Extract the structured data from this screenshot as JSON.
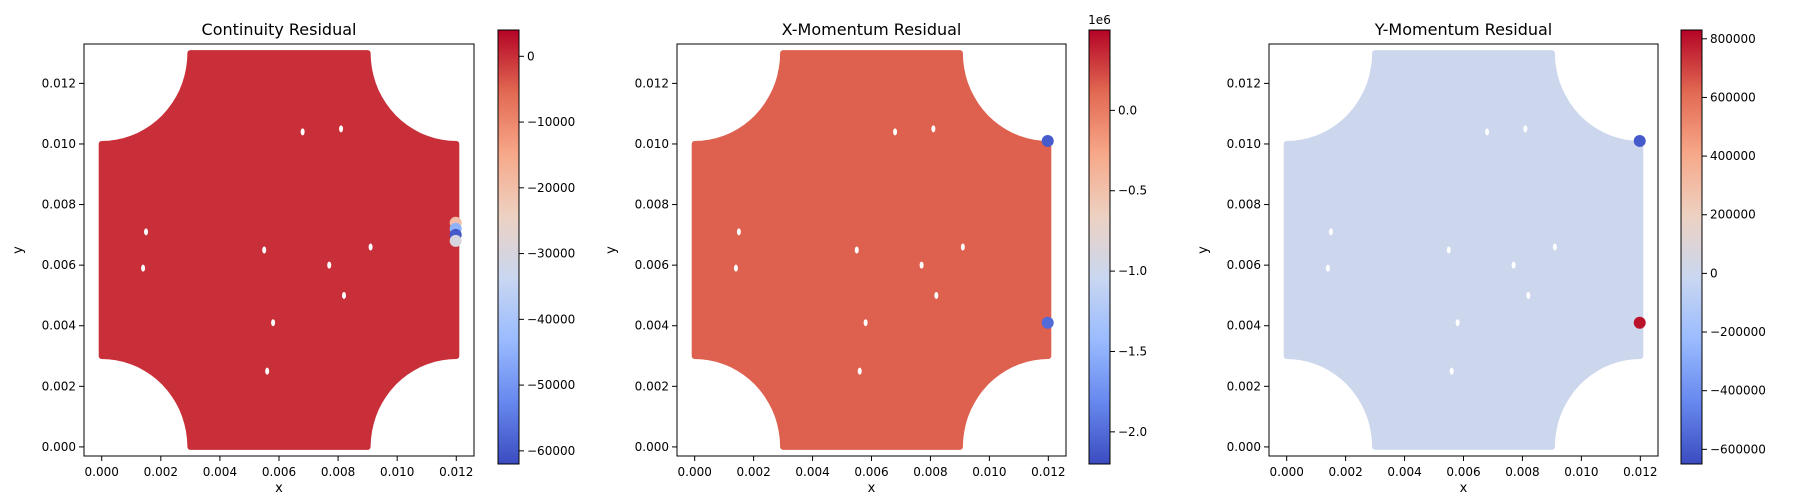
{
  "chart_data": [
    {
      "type": "scatter",
      "title": "Continuity Residual",
      "xlabel": "x",
      "ylabel": "y",
      "xlim": [
        -0.0006,
        0.0126
      ],
      "ylim": [
        -0.0003,
        0.0133
      ],
      "xticks": [
        "0.000",
        "0.002",
        "0.004",
        "0.006",
        "0.008",
        "0.010",
        "0.012"
      ],
      "yticks": [
        "0.000",
        "0.002",
        "0.004",
        "0.006",
        "0.008",
        "0.010",
        "0.012"
      ],
      "colormap": "coolwarm",
      "colorbar": {
        "min": -62000,
        "max": 4000,
        "ticks": [
          0,
          -10000,
          -20000,
          -30000,
          -40000,
          -50000,
          -60000
        ],
        "tick_labels": [
          "0",
          "−10000",
          "−20000",
          "−30000",
          "−40000",
          "−50000",
          "−60000"
        ],
        "offset_label": ""
      },
      "field_value": 0,
      "edge_points": [
        {
          "x": 0.01198,
          "y": 0.0074,
          "value": -20000
        },
        {
          "x": 0.01198,
          "y": 0.0072,
          "value": -45000
        },
        {
          "x": 0.01198,
          "y": 0.007,
          "value": -60000
        },
        {
          "x": 0.01198,
          "y": 0.0068,
          "value": -30000
        }
      ],
      "grid": false
    },
    {
      "type": "scatter",
      "title": "X-Momentum Residual",
      "xlabel": "x",
      "ylabel": "y",
      "xlim": [
        -0.0006,
        0.0126
      ],
      "ylim": [
        -0.0003,
        0.0133
      ],
      "xticks": [
        "0.000",
        "0.002",
        "0.004",
        "0.006",
        "0.008",
        "0.010",
        "0.012"
      ],
      "yticks": [
        "0.000",
        "0.002",
        "0.004",
        "0.006",
        "0.008",
        "0.010",
        "0.012"
      ],
      "colormap": "coolwarm",
      "colorbar": {
        "min": -2.2,
        "max": 0.5,
        "ticks": [
          0.0,
          -0.5,
          -1.0,
          -1.5,
          -2.0
        ],
        "tick_labels": [
          "0.0",
          "−0.5",
          "−1.0",
          "−1.5",
          "−2.0"
        ],
        "offset_label": "1e6"
      },
      "field_value": 0.15,
      "edge_points": [
        {
          "x": 0.01198,
          "y": 0.0101,
          "value": -2.1
        },
        {
          "x": 0.01198,
          "y": 0.0041,
          "value": -2.0
        }
      ],
      "grid": false
    },
    {
      "type": "scatter",
      "title": "Y-Momentum Residual",
      "xlabel": "x",
      "ylabel": "y",
      "xlim": [
        -0.0006,
        0.0126
      ],
      "ylim": [
        -0.0003,
        0.0133
      ],
      "xticks": [
        "0.000",
        "0.002",
        "0.004",
        "0.006",
        "0.008",
        "0.010",
        "0.012"
      ],
      "yticks": [
        "0.000",
        "0.002",
        "0.004",
        "0.006",
        "0.008",
        "0.010",
        "0.012"
      ],
      "colormap": "coolwarm",
      "colorbar": {
        "min": -650000,
        "max": 830000,
        "ticks": [
          800000,
          600000,
          400000,
          200000,
          0,
          -200000,
          -400000,
          -600000
        ],
        "tick_labels": [
          "800000",
          "600000",
          "400000",
          "200000",
          "0",
          "−200000",
          "−400000",
          "−600000"
        ],
        "offset_label": ""
      },
      "field_value": 0,
      "edge_points": [
        {
          "x": 0.01198,
          "y": 0.0101,
          "value": -600000
        },
        {
          "x": 0.01198,
          "y": 0.0041,
          "value": 800000
        }
      ],
      "grid": false
    }
  ],
  "colors": {
    "coolwarm": [
      "#3b4cc0",
      "#6788ee",
      "#9abbff",
      "#c9d7f0",
      "#edd1c2",
      "#f7a889",
      "#e26952",
      "#b40426"
    ]
  }
}
